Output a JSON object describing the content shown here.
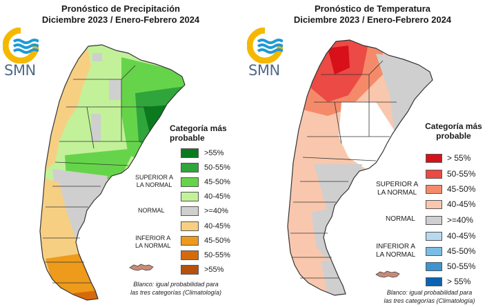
{
  "precipitation": {
    "title_line1": "Pronóstico de Precipitación",
    "title_line2": "Diciembre 2023 / Enero-Febrero 2024",
    "logo_text": "SMN",
    "legend_title_line1": "Categoría más",
    "legend_title_line2": "probable",
    "group_superior_line1": "SUPERIOR A",
    "group_superior_line2": "LA NORMAL",
    "group_normal": "NORMAL",
    "group_inferior_line1": "INFERIOR A",
    "group_inferior_line2": "LA NORMAL",
    "note_line1": "Blanco: igual probabilidad para",
    "note_line2": "las tres categorías (Climatología)",
    "legend": [
      {
        "label": ">55%",
        "color": "#0b7a1e"
      },
      {
        "label": "50-55%",
        "color": "#2fa53c"
      },
      {
        "label": "45-50%",
        "color": "#66d44a"
      },
      {
        "label": "40-45%",
        "color": "#c2f19a"
      },
      {
        "label": ">=40%",
        "color": "#cfcfcf"
      },
      {
        "label": "40-45%",
        "color": "#f7cf82"
      },
      {
        "label": "45-50%",
        "color": "#ee9a1b"
      },
      {
        "label": "50-55%",
        "color": "#d66a0a"
      },
      {
        "label": ">55%",
        "color": "#b4520a"
      }
    ]
  },
  "temperature": {
    "title_line1": "Pronóstico de Temperatura",
    "title_line2": "Diciembre 2023 / Enero-Febrero 2024",
    "logo_text": "SMN",
    "legend_title_line1": "Categoría más",
    "legend_title_line2": "probable",
    "group_superior_line1": "SUPERIOR A",
    "group_superior_line2": "LA NORMAL",
    "group_normal": "NORMAL",
    "group_inferior_line1": "INFERIOR A",
    "group_inferior_line2": "LA NORMAL",
    "note_line1": "Blanco: igual probabilidad para",
    "note_line2": "las tres categorías (Climatología)",
    "legend": [
      {
        "label": "> 55%",
        "color": "#d8101a"
      },
      {
        "label": "50-55%",
        "color": "#ec4a45"
      },
      {
        "label": "45-50%",
        "color": "#f58a6a"
      },
      {
        "label": "40-45%",
        "color": "#f9c7ad"
      },
      {
        "label": ">=40%",
        "color": "#cfcfcf"
      },
      {
        "label": "40-45%",
        "color": "#b9d9ee"
      },
      {
        "label": "45-50%",
        "color": "#7bbde2"
      },
      {
        "label": "50-55%",
        "color": "#3d94d0"
      },
      {
        "label": "> 55%",
        "color": "#0b63b1"
      }
    ]
  }
}
